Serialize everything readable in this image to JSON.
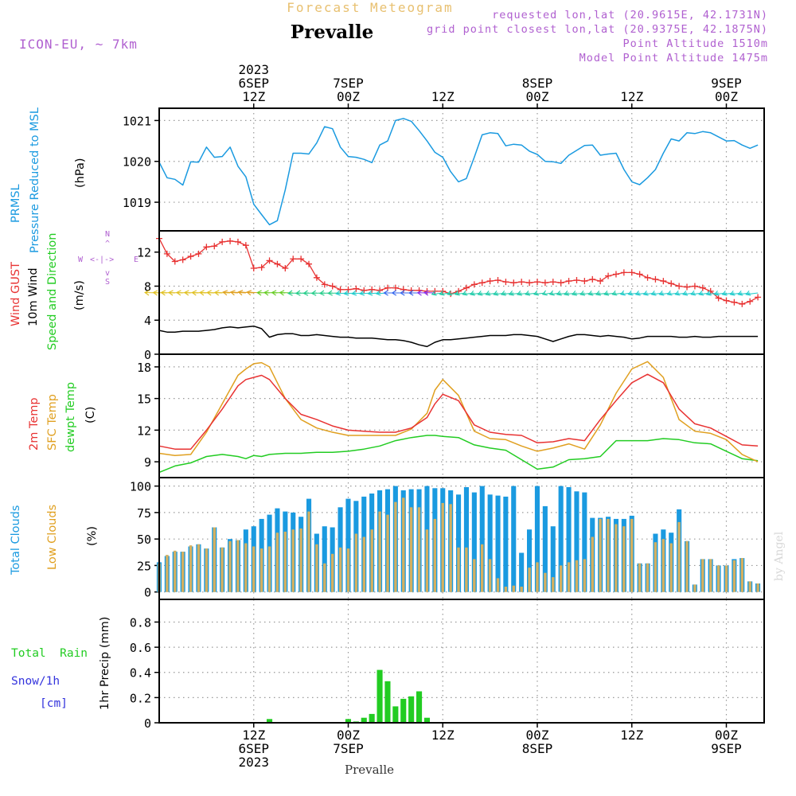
{
  "header": {
    "super_title": "Forecast Meteogram",
    "title": "Prevalle",
    "model": "ICON-EU, ~ 7km",
    "requested": "requested lon,lat (20.9615E, 42.1731N)",
    "grid_point": "grid point closest lon,lat (20.9375E, 42.1875N)",
    "point_alt": "Point Altitude 1510m",
    "model_alt": "Model Point Altitude 1475m",
    "credit": "by Angel",
    "footer": "Prevalle"
  },
  "colors": {
    "pressure": "#1a9ae0",
    "gust": "#e83232",
    "wind10": "#000000",
    "temp2m": "#e83232",
    "sfc": "#e0a020",
    "dewpt": "#22cc22",
    "total_clouds": "#1a9ae0",
    "low_clouds": "#d4b060",
    "rain": "#22cc22",
    "snow": "#3333dd",
    "compass": "#b060d0",
    "meta": "#b060d0",
    "super": "#e8c070"
  },
  "time_axis": {
    "top": [
      {
        "h": 12,
        "lines": [
          "2023",
          "6SEP",
          "12Z"
        ]
      },
      {
        "h": 24,
        "lines": [
          "7SEP",
          "00Z"
        ]
      },
      {
        "h": 36,
        "lines": [
          "12Z"
        ]
      },
      {
        "h": 48,
        "lines": [
          "8SEP",
          "00Z"
        ]
      },
      {
        "h": 60,
        "lines": [
          "12Z"
        ]
      },
      {
        "h": 72,
        "lines": [
          "9SEP",
          "00Z"
        ]
      }
    ],
    "bottom": [
      {
        "h": 12,
        "lines": [
          "12Z",
          "6SEP",
          "2023"
        ]
      },
      {
        "h": 24,
        "lines": [
          "00Z",
          "7SEP"
        ]
      },
      {
        "h": 36,
        "lines": [
          "12Z"
        ]
      },
      {
        "h": 48,
        "lines": [
          "00Z",
          "8SEP"
        ]
      },
      {
        "h": 60,
        "lines": [
          "12Z"
        ]
      },
      {
        "h": 72,
        "lines": [
          "00Z",
          "9SEP"
        ]
      }
    ]
  },
  "panel_labels": {
    "pressure": [
      "PRMSL",
      "Pressure Reduced to MSL"
    ],
    "pressure_unit": "(hPa)",
    "wind_gust": "Wind GUST",
    "wind_10m": "10m Wind",
    "wind_dir": "Speed and Direction",
    "wind_unit": "(m/s)",
    "compass": {
      "n": "N",
      "s": "S",
      "w": "W",
      "e": "E",
      "arrow_up": "^",
      "arrow_down": "v",
      "h": "<-|->"
    },
    "temp2m": "2m Temp",
    "sfc_temp": "SFC Temp",
    "dewpt": "dewpt Temp",
    "temp_unit": "(C)",
    "total_clouds": "Total Clouds",
    "low_clouds": "Low Clouds",
    "cloud_unit": "(%)",
    "total_rain": "Total  Rain",
    "snow": "Snow/1h",
    "snow_unit": "[cm]",
    "precip": "1hr Precip (mm)"
  },
  "chart_data": [
    {
      "type": "line",
      "name": "pressure",
      "ylabel": "PRMSL Pressure Reduced to MSL (hPa)",
      "ylim": [
        1018.3,
        1021.3
      ],
      "yticks": [
        1019,
        1020,
        1021
      ],
      "hours": [
        0,
        1,
        2,
        3,
        4,
        5,
        6,
        7,
        8,
        9,
        10,
        11,
        12,
        13,
        14,
        15,
        16,
        17,
        18,
        19,
        20,
        21,
        22,
        23,
        24,
        25,
        26,
        27,
        28,
        29,
        30,
        31,
        32,
        33,
        34,
        35,
        36,
        37,
        38,
        39,
        40,
        41,
        42,
        43,
        44,
        45,
        46,
        47,
        48,
        49,
        50,
        51,
        52,
        53,
        54,
        55,
        56,
        57,
        58,
        59,
        60,
        61,
        62,
        63,
        64,
        65,
        66,
        67,
        68,
        69,
        70,
        71,
        72,
        73,
        74,
        75,
        76
      ],
      "values": [
        1019.98,
        1019.6,
        1019.56,
        1019.42,
        1019.99,
        1019.98,
        1020.35,
        1020.1,
        1020.12,
        1020.35,
        1019.88,
        1019.62,
        1018.95,
        1018.7,
        1018.45,
        1018.55,
        1019.3,
        1020.2,
        1020.2,
        1020.18,
        1020.45,
        1020.85,
        1020.8,
        1020.35,
        1020.12,
        1020.1,
        1020.05,
        1019.97,
        1020.4,
        1020.5,
        1021.0,
        1021.05,
        1020.98,
        1020.75,
        1020.5,
        1020.22,
        1020.1,
        1019.75,
        1019.5,
        1019.58,
        1020.1,
        1020.65,
        1020.7,
        1020.68,
        1020.38,
        1020.42,
        1020.4,
        1020.25,
        1020.17,
        1020.0,
        1019.99,
        1019.95,
        1020.15,
        1020.27,
        1020.39,
        1020.4,
        1020.15,
        1020.18,
        1020.2,
        1019.8,
        1019.5,
        1019.43,
        1019.6,
        1019.8,
        1020.2,
        1020.55,
        1020.5,
        1020.7,
        1020.68,
        1020.73,
        1020.7,
        1020.6,
        1020.5,
        1020.51,
        1020.4,
        1020.32,
        1020.4
      ]
    },
    {
      "type": "line",
      "name": "wind",
      "ylabel": "Wind GUST / 10m Wind Speed and Direction (m/s)",
      "ylim": [
        0,
        14.5
      ],
      "yticks": [
        0,
        4,
        8,
        12
      ],
      "hours": [
        0,
        1,
        2,
        3,
        4,
        5,
        6,
        7,
        8,
        9,
        10,
        11,
        12,
        13,
        14,
        15,
        16,
        17,
        18,
        19,
        20,
        21,
        22,
        23,
        24,
        25,
        26,
        27,
        28,
        29,
        30,
        31,
        32,
        33,
        34,
        35,
        36,
        37,
        38,
        39,
        40,
        41,
        42,
        43,
        44,
        45,
        46,
        47,
        48,
        49,
        50,
        51,
        52,
        53,
        54,
        55,
        56,
        57,
        58,
        59,
        60,
        61,
        62,
        63,
        64,
        65,
        66,
        67,
        68,
        69,
        70,
        71,
        72,
        73,
        74,
        75,
        76
      ],
      "gust": [
        13.6,
        11.8,
        10.9,
        11.1,
        11.5,
        11.8,
        12.6,
        12.7,
        13.2,
        13.3,
        13.2,
        12.8,
        10.1,
        10.2,
        11.0,
        10.6,
        10.1,
        11.2,
        11.2,
        10.6,
        9.0,
        8.2,
        8.0,
        7.6,
        7.6,
        7.7,
        7.5,
        7.6,
        7.5,
        7.8,
        7.8,
        7.6,
        7.5,
        7.5,
        7.4,
        7.4,
        7.4,
        7.1,
        7.4,
        7.8,
        8.2,
        8.4,
        8.6,
        8.7,
        8.5,
        8.4,
        8.5,
        8.4,
        8.5,
        8.4,
        8.5,
        8.4,
        8.6,
        8.7,
        8.6,
        8.8,
        8.6,
        9.2,
        9.4,
        9.6,
        9.6,
        9.4,
        9.0,
        8.8,
        8.6,
        8.3,
        8.0,
        7.9,
        8.0,
        7.8,
        7.4,
        6.6,
        6.3,
        6.1,
        5.9,
        6.2,
        6.7
      ],
      "wind10": [
        2.8,
        2.6,
        2.6,
        2.7,
        2.7,
        2.7,
        2.8,
        2.9,
        3.1,
        3.2,
        3.1,
        3.2,
        3.3,
        3.0,
        2.0,
        2.3,
        2.4,
        2.4,
        2.2,
        2.2,
        2.3,
        2.2,
        2.1,
        2.0,
        2.0,
        1.9,
        1.9,
        1.9,
        1.8,
        1.7,
        1.7,
        1.6,
        1.4,
        1.1,
        0.9,
        1.4,
        1.7,
        1.7,
        1.8,
        1.9,
        2.0,
        2.1,
        2.2,
        2.2,
        2.2,
        2.3,
        2.3,
        2.2,
        2.1,
        1.8,
        1.5,
        1.8,
        2.1,
        2.3,
        2.3,
        2.2,
        2.1,
        2.2,
        2.1,
        2.0,
        1.8,
        1.9,
        2.1,
        2.1,
        2.1,
        2.1,
        2.0,
        2.0,
        2.1,
        2.0,
        2.0,
        2.1,
        2.1,
        2.1,
        2.1,
        2.1,
        2.1
      ],
      "barb_level": 7.2
    },
    {
      "type": "line",
      "name": "temperature",
      "ylabel": "2m Temp / SFC Temp / dewpt Temp (C)",
      "ylim": [
        7.5,
        19.2
      ],
      "yticks": [
        9,
        12,
        15,
        18
      ],
      "hours": [
        0,
        2,
        4,
        6,
        8,
        10,
        11,
        12,
        13,
        14,
        16,
        18,
        20,
        22,
        24,
        26,
        28,
        30,
        32,
        34,
        35,
        36,
        38,
        40,
        42,
        44,
        46,
        48,
        50,
        52,
        54,
        56,
        58,
        60,
        62,
        64,
        66,
        68,
        70,
        72,
        74,
        76
      ],
      "temp2m": [
        10.5,
        10.2,
        10.2,
        12.0,
        14.0,
        16.2,
        16.8,
        17.0,
        17.2,
        16.8,
        15.0,
        13.5,
        13.0,
        12.4,
        12.0,
        11.9,
        11.8,
        11.8,
        12.2,
        13.2,
        14.5,
        15.4,
        14.8,
        12.5,
        11.8,
        11.6,
        11.5,
        10.8,
        10.9,
        11.2,
        11.0,
        13.0,
        14.8,
        16.5,
        17.3,
        16.5,
        14.0,
        12.6,
        12.2,
        11.4,
        10.6,
        10.5
      ],
      "sfc": [
        9.8,
        9.6,
        9.7,
        11.8,
        14.5,
        17.2,
        17.8,
        18.3,
        18.4,
        18.0,
        15.0,
        13.0,
        12.2,
        11.8,
        11.5,
        11.5,
        11.5,
        11.5,
        12.1,
        13.6,
        15.8,
        16.8,
        15.3,
        11.9,
        11.2,
        11.1,
        10.5,
        10.0,
        10.3,
        10.7,
        10.2,
        12.5,
        15.5,
        17.8,
        18.5,
        17.0,
        13.0,
        11.9,
        11.7,
        11.1,
        9.7,
        9.0
      ],
      "dewpt": [
        8.0,
        8.6,
        8.9,
        9.5,
        9.7,
        9.5,
        9.3,
        9.6,
        9.5,
        9.7,
        9.8,
        9.8,
        9.9,
        9.9,
        10.0,
        10.2,
        10.5,
        11.0,
        11.3,
        11.5,
        11.5,
        11.4,
        11.3,
        10.6,
        10.3,
        10.1,
        9.2,
        8.3,
        8.5,
        9.2,
        9.3,
        9.5,
        11.0,
        11.0,
        11.0,
        11.2,
        11.1,
        10.8,
        10.7,
        10.0,
        9.3,
        9.1
      ]
    },
    {
      "type": "bar",
      "name": "clouds",
      "ylabel": "Total Clouds / Low Clouds (%)",
      "ylim": [
        -7,
        108
      ],
      "yticks": [
        0,
        25,
        50,
        75,
        100
      ],
      "hours": [
        0,
        1,
        2,
        3,
        4,
        5,
        6,
        7,
        8,
        9,
        10,
        11,
        12,
        13,
        14,
        15,
        16,
        17,
        18,
        19,
        20,
        21,
        22,
        23,
        24,
        25,
        26,
        27,
        28,
        29,
        30,
        31,
        32,
        33,
        34,
        35,
        36,
        37,
        38,
        39,
        40,
        41,
        42,
        43,
        44,
        45,
        46,
        47,
        48,
        49,
        50,
        51,
        52,
        53,
        54,
        55,
        56,
        57,
        58,
        59,
        60,
        61,
        62,
        63,
        64,
        65,
        66,
        67,
        68,
        69,
        70,
        71,
        72,
        73,
        74,
        75,
        76
      ],
      "total": [
        28,
        34,
        38,
        38,
        43,
        45,
        41,
        61,
        42,
        50,
        49,
        59,
        62,
        69,
        73,
        79,
        76,
        75,
        71,
        88,
        55,
        62,
        61,
        80,
        88,
        86,
        90,
        93,
        96,
        97,
        100,
        96,
        97,
        97,
        100,
        98,
        98,
        96,
        92,
        99,
        94,
        100,
        92,
        91,
        90,
        100,
        37,
        59,
        100,
        81,
        62,
        100,
        99,
        95,
        94,
        70,
        70,
        71,
        69,
        69,
        72,
        27,
        27,
        55,
        59,
        56,
        78,
        48,
        7,
        31,
        31,
        25,
        25,
        31,
        32,
        10,
        8
      ],
      "low": [
        27,
        35,
        39,
        38,
        44,
        45,
        41,
        61,
        42,
        48,
        49,
        46,
        43,
        41,
        43,
        56,
        57,
        59,
        60,
        76,
        45,
        27,
        36,
        42,
        41,
        55,
        52,
        59,
        76,
        73,
        85,
        89,
        80,
        80,
        59,
        69,
        84,
        83,
        42,
        42,
        31,
        45,
        31,
        13,
        5,
        6,
        5,
        23,
        28,
        18,
        14,
        25,
        28,
        30,
        31,
        52,
        69,
        69,
        64,
        62,
        69,
        27,
        27,
        47,
        50,
        46,
        66,
        48,
        7,
        31,
        31,
        25,
        25,
        30,
        32,
        10,
        8
      ]
    },
    {
      "type": "bar",
      "name": "precipitation",
      "ylabel": "1hr Precip (mm)",
      "ylim": [
        0,
        0.98
      ],
      "yticks": [
        0,
        0.2,
        0.4,
        0.6,
        0.8
      ],
      "hours": [
        14,
        24,
        25,
        26,
        27,
        28,
        29,
        30,
        31,
        32,
        33,
        34,
        35
      ],
      "rain": [
        0.03,
        0.03,
        0.01,
        0.04,
        0.07,
        0.42,
        0.33,
        0.13,
        0.19,
        0.21,
        0.25,
        0.04,
        0.005
      ]
    }
  ]
}
